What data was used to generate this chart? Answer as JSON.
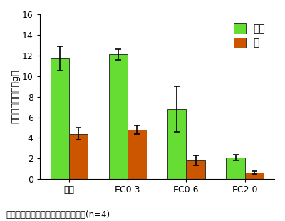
{
  "categories": [
    "対照",
    "EC0.3",
    "EC0.6",
    "EC2.0"
  ],
  "stem_leaf_values": [
    11.7,
    12.1,
    6.8,
    2.1
  ],
  "stem_leaf_errors": [
    1.2,
    0.5,
    2.2,
    0.3
  ],
  "root_values": [
    4.4,
    4.8,
    1.8,
    0.65
  ],
  "root_errors": [
    0.6,
    0.4,
    0.5,
    0.15
  ],
  "stem_leaf_color": "#66dd33",
  "root_color": "#cc5500",
  "stem_leaf_label": "茎葉",
  "root_label": "根",
  "ylabel": "株あたり乾物重（g）",
  "ylim": [
    0,
    16
  ],
  "yticks": [
    0,
    2,
    4,
    6,
    8,
    10,
    12,
    14,
    16
  ],
  "bar_width": 0.32,
  "caption": "図中のエラーバーは標準偏差を示す(n=4)",
  "background_color": "#ffffff",
  "legend_fontsize": 10,
  "axis_fontsize": 9,
  "tick_fontsize": 9,
  "caption_fontsize": 8.5
}
